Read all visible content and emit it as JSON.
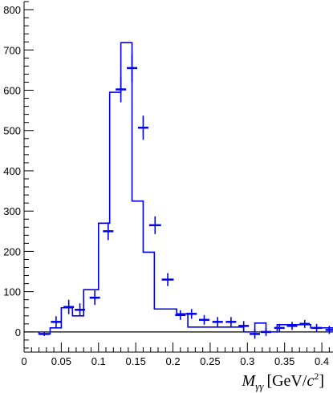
{
  "chart_data": {
    "type": "histogram",
    "title": "",
    "xlabel": "M",
    "xlabel_subscript": "γγ",
    "xlabel_unit_open": "[GeV/",
    "xlabel_unit_var": "c",
    "xlabel_unit_exp": "2",
    "xlabel_unit_close": "]",
    "ylabel": "",
    "xlim": [
      0,
      0.415
    ],
    "ylim": [
      -50,
      820
    ],
    "xticks": [
      0,
      0.05,
      0.1,
      0.15,
      0.2,
      0.25,
      0.3,
      0.35,
      0.4
    ],
    "xtick_labels": [
      "0",
      "0.05",
      "0.1",
      "0.15",
      "0.2",
      "0.25",
      "0.3",
      "0.35",
      "0.4"
    ],
    "yticks": [
      0,
      100,
      200,
      300,
      400,
      500,
      600,
      700,
      800
    ],
    "ytick_labels": [
      "0",
      "100",
      "200",
      "300",
      "400",
      "500",
      "600",
      "700",
      "800"
    ],
    "colors": {
      "series": "#0000ee",
      "axis": "#000000"
    },
    "histogram": {
      "bin_edges": [
        0.02,
        0.035,
        0.05,
        0.065,
        0.08,
        0.1,
        0.115,
        0.13,
        0.145,
        0.16,
        0.175,
        0.19,
        0.205,
        0.22,
        0.235,
        0.25,
        0.265,
        0.28,
        0.295,
        0.31,
        0.325,
        0.34,
        0.355,
        0.37,
        0.385,
        0.4,
        0.415
      ],
      "values": [
        -5,
        10,
        60,
        40,
        105,
        270,
        595,
        718,
        325,
        198,
        57,
        57,
        45,
        12,
        12,
        12,
        12,
        12,
        0,
        22,
        0,
        18,
        18,
        18,
        10,
        10
      ]
    },
    "points": [
      {
        "x": 0.027,
        "y": -5,
        "xerr": 0.007,
        "yerr": 5
      },
      {
        "x": 0.043,
        "y": 25,
        "xerr": 0.007,
        "yerr": 14
      },
      {
        "x": 0.06,
        "y": 62,
        "xerr": 0.007,
        "yerr": 18
      },
      {
        "x": 0.075,
        "y": 55,
        "xerr": 0.007,
        "yerr": 16
      },
      {
        "x": 0.095,
        "y": 85,
        "xerr": 0.007,
        "yerr": 18
      },
      {
        "x": 0.113,
        "y": 250,
        "xerr": 0.007,
        "yerr": 22
      },
      {
        "x": 0.13,
        "y": 602,
        "xerr": 0.007,
        "yerr": 32
      },
      {
        "x": 0.145,
        "y": 655,
        "xerr": 0.007,
        "yerr": 35
      },
      {
        "x": 0.16,
        "y": 507,
        "xerr": 0.007,
        "yerr": 30
      },
      {
        "x": 0.176,
        "y": 265,
        "xerr": 0.008,
        "yerr": 22
      },
      {
        "x": 0.193,
        "y": 130,
        "xerr": 0.008,
        "yerr": 16
      },
      {
        "x": 0.21,
        "y": 42,
        "xerr": 0.007,
        "yerr": 12
      },
      {
        "x": 0.225,
        "y": 45,
        "xerr": 0.007,
        "yerr": 12
      },
      {
        "x": 0.242,
        "y": 30,
        "xerr": 0.007,
        "yerr": 12
      },
      {
        "x": 0.26,
        "y": 25,
        "xerr": 0.007,
        "yerr": 12
      },
      {
        "x": 0.278,
        "y": 25,
        "xerr": 0.007,
        "yerr": 12
      },
      {
        "x": 0.295,
        "y": 15,
        "xerr": 0.007,
        "yerr": 12
      },
      {
        "x": 0.31,
        "y": -5,
        "xerr": 0.007,
        "yerr": 12
      },
      {
        "x": 0.325,
        "y": 0,
        "xerr": 0.007,
        "yerr": 10
      },
      {
        "x": 0.343,
        "y": 10,
        "xerr": 0.007,
        "yerr": 10
      },
      {
        "x": 0.36,
        "y": 15,
        "xerr": 0.007,
        "yerr": 10
      },
      {
        "x": 0.377,
        "y": 20,
        "xerr": 0.007,
        "yerr": 10
      },
      {
        "x": 0.393,
        "y": 10,
        "xerr": 0.007,
        "yerr": 10
      },
      {
        "x": 0.41,
        "y": 5,
        "xerr": 0.005,
        "yerr": 10
      }
    ]
  }
}
